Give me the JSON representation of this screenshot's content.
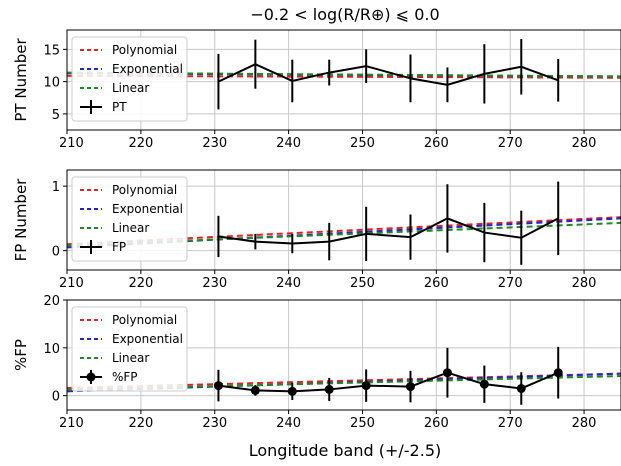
{
  "figure": {
    "title": "−0.2 < log(R/R⊕) ⩽ 0.0",
    "xlabel": "Longitude band (+/-2.5)"
  },
  "chart_data": [
    {
      "type": "line",
      "ylabel": "PT Number",
      "xlim": [
        210,
        285
      ],
      "ylim": [
        2.5,
        18
      ],
      "xticks": [
        210,
        220,
        230,
        240,
        250,
        260,
        270,
        280
      ],
      "yticks": [
        5,
        10,
        15
      ],
      "grid": true,
      "legend_position": "upper-left",
      "marker": "none",
      "series": [
        {
          "name": "Polynomial",
          "kind": "fit",
          "color": "#e32222",
          "style": "dashed",
          "x": [
            210,
            285
          ],
          "y": [
            10.9,
            10.6
          ]
        },
        {
          "name": "Exponential",
          "kind": "fit",
          "color": "#2323d6",
          "style": "dashed",
          "x": [
            210,
            285
          ],
          "y": [
            11.3,
            10.8
          ]
        },
        {
          "name": "Linear",
          "kind": "fit",
          "color": "#1f8a1f",
          "style": "dashed",
          "x": [
            210,
            285
          ],
          "y": [
            11.4,
            10.8
          ]
        },
        {
          "name": "PT",
          "kind": "data",
          "color": "#000000",
          "x": [
            230.5,
            235.5,
            240.5,
            245.5,
            250.5,
            256.5,
            261.5,
            266.5,
            271.5,
            276.5
          ],
          "y": [
            10.0,
            12.7,
            10.1,
            11.4,
            12.4,
            10.5,
            9.5,
            11.2,
            12.3,
            10.2
          ],
          "err": [
            4.3,
            3.8,
            3.3,
            2.0,
            2.6,
            3.7,
            2.7,
            4.6,
            4.3,
            3.3
          ]
        }
      ]
    },
    {
      "type": "line",
      "ylabel": "FP Number",
      "xlim": [
        210,
        285
      ],
      "ylim": [
        -0.3,
        1.25
      ],
      "xticks": [
        210,
        220,
        230,
        240,
        250,
        260,
        270,
        280
      ],
      "yticks": [
        0,
        1
      ],
      "grid": true,
      "legend_position": "upper-left",
      "marker": "none",
      "series": [
        {
          "name": "Polynomial",
          "kind": "fit",
          "color": "#e32222",
          "style": "dashed",
          "x": [
            210,
            285
          ],
          "y": [
            0.1,
            0.52
          ]
        },
        {
          "name": "Exponential",
          "kind": "fit",
          "color": "#2323d6",
          "style": "dashed",
          "x": [
            210,
            285
          ],
          "y": [
            0.05,
            0.5
          ]
        },
        {
          "name": "Linear",
          "kind": "fit",
          "color": "#1f8a1f",
          "style": "dashed",
          "x": [
            210,
            285
          ],
          "y": [
            0.08,
            0.43
          ]
        },
        {
          "name": "FP",
          "kind": "data",
          "color": "#000000",
          "x": [
            230.5,
            235.5,
            240.5,
            245.5,
            250.5,
            256.5,
            261.5,
            266.5,
            271.5,
            276.5
          ],
          "y": [
            0.22,
            0.14,
            0.11,
            0.14,
            0.26,
            0.21,
            0.5,
            0.28,
            0.2,
            0.5
          ],
          "err": [
            0.32,
            0.12,
            0.15,
            0.29,
            0.42,
            0.35,
            0.53,
            0.46,
            0.42,
            0.57
          ]
        }
      ]
    },
    {
      "type": "line",
      "ylabel": "%FP",
      "xlim": [
        210,
        285
      ],
      "ylim": [
        -3,
        20
      ],
      "xticks": [
        210,
        220,
        230,
        240,
        250,
        260,
        270,
        280
      ],
      "yticks": [
        0,
        10,
        20
      ],
      "grid": true,
      "legend_position": "upper-left",
      "marker": "circle",
      "series": [
        {
          "name": "Polynomial",
          "kind": "fit",
          "color": "#e32222",
          "style": "dashed",
          "x": [
            210,
            285
          ],
          "y": [
            1.6,
            4.6
          ]
        },
        {
          "name": "Exponential",
          "kind": "fit",
          "color": "#2323d6",
          "style": "dashed",
          "x": [
            210,
            285
          ],
          "y": [
            0.9,
            4.6
          ]
        },
        {
          "name": "Linear",
          "kind": "fit",
          "color": "#1f8a1f",
          "style": "dashed",
          "x": [
            210,
            285
          ],
          "y": [
            1.2,
            4.1
          ]
        },
        {
          "name": "%FP",
          "kind": "data",
          "color": "#000000",
          "x": [
            230.5,
            235.5,
            240.5,
            245.5,
            250.5,
            256.5,
            261.5,
            266.5,
            271.5,
            276.5
          ],
          "y": [
            2.1,
            1.1,
            0.9,
            1.3,
            2.1,
            1.9,
            4.8,
            2.4,
            1.5,
            4.8
          ],
          "err": [
            3.3,
            1.1,
            1.8,
            2.4,
            3.4,
            3.3,
            5.2,
            3.9,
            3.4,
            5.4
          ]
        }
      ]
    }
  ]
}
